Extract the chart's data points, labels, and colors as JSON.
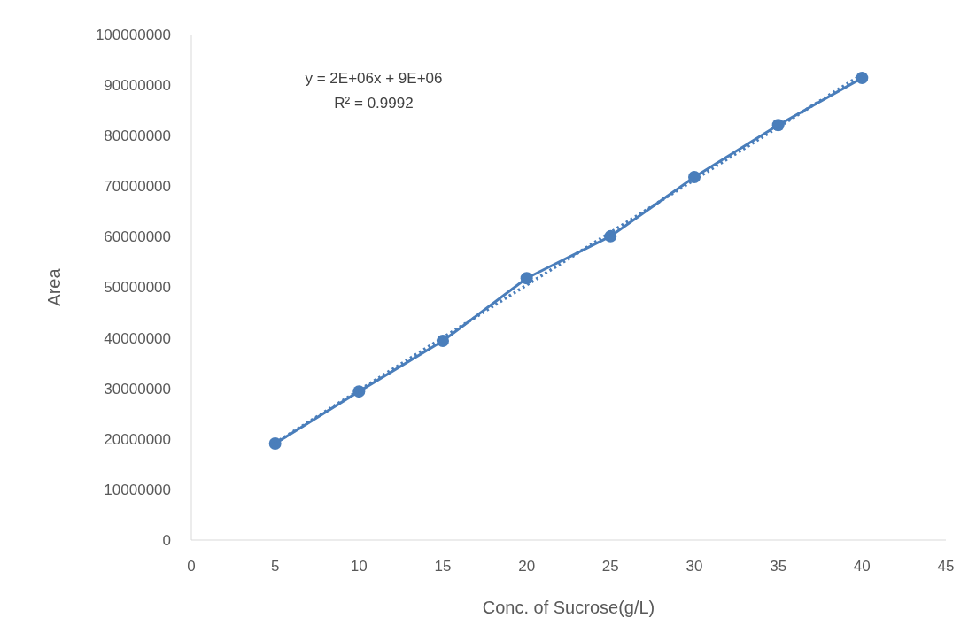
{
  "chart_data": {
    "type": "line",
    "xlabel": "Conc. of Sucrose(g/L)",
    "ylabel": "Area",
    "x": [
      5,
      10,
      15,
      20,
      25,
      30,
      35,
      40
    ],
    "series": [
      {
        "color": "#4a7ebb",
        "values": [
          19100000,
          29400000,
          39400000,
          51800000,
          60100000,
          71800000,
          82100000,
          91400000
        ],
        "marker": "circle",
        "line_style": "solid"
      },
      {
        "type": "line",
        "x": [
          5,
          40
        ],
        "color": "#4a7ebb",
        "values": [
          19200000,
          92100000
        ],
        "marker": "none",
        "line_style": "dotted"
      }
    ],
    "xlim": [
      0,
      45
    ],
    "xticks": [
      0,
      5,
      10,
      15,
      20,
      25,
      30,
      35,
      40,
      45
    ],
    "ylim": [
      0,
      100000000
    ],
    "yticks": [
      0,
      10000000,
      20000000,
      30000000,
      40000000,
      50000000,
      60000000,
      70000000,
      80000000,
      90000000,
      100000000
    ],
    "grid": false,
    "annotations": [
      "y = 2E+06x + 9E+06",
      "R² = 0.9992"
    ]
  }
}
